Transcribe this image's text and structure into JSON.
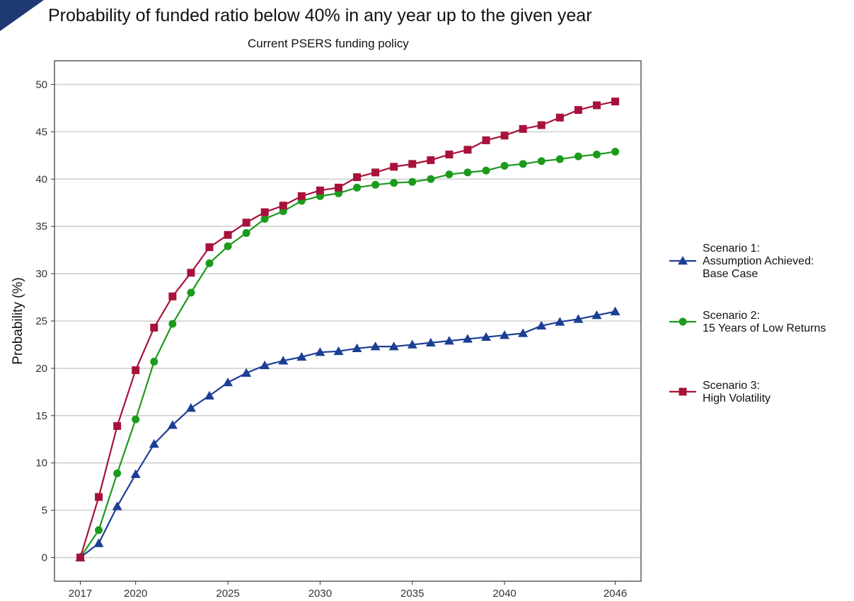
{
  "colors": {
    "accent": "#1f3a73",
    "grid": "#cfcfcf",
    "frame": "#333333"
  },
  "chart_data": {
    "type": "line",
    "title": "Probability of funded ratio below 40% in any year up to the given year",
    "subtitle": "Current PSERS funding policy",
    "xlabel": "",
    "ylabel": "Probability (%)",
    "xlim": [
      2017,
      2046
    ],
    "ylim": [
      0,
      50
    ],
    "x_ticks": [
      2017,
      2020,
      2025,
      2030,
      2035,
      2040,
      2046
    ],
    "y_ticks": [
      0,
      5,
      10,
      15,
      20,
      25,
      30,
      35,
      40,
      45,
      50
    ],
    "grid": true,
    "legend_position": "right",
    "x": [
      2017,
      2018,
      2019,
      2020,
      2021,
      2022,
      2023,
      2024,
      2025,
      2026,
      2027,
      2028,
      2029,
      2030,
      2031,
      2032,
      2033,
      2034,
      2035,
      2036,
      2037,
      2038,
      2039,
      2040,
      2041,
      2042,
      2043,
      2044,
      2045,
      2046
    ],
    "series": [
      {
        "name_lines": [
          "Scenario 1:",
          "Assumption Achieved:",
          "Base Case"
        ],
        "color": "#1c3f94",
        "marker": "triangle",
        "values": [
          0.0,
          1.5,
          5.4,
          8.8,
          12.0,
          14.0,
          15.8,
          17.1,
          18.5,
          19.5,
          20.3,
          20.8,
          21.2,
          21.7,
          21.8,
          22.1,
          22.3,
          22.3,
          22.5,
          22.7,
          22.9,
          23.1,
          23.3,
          23.5,
          23.7,
          24.5,
          24.9,
          25.2,
          25.6,
          26.0
        ]
      },
      {
        "name_lines": [
          "Scenario 2:",
          "15 Years of Low Returns"
        ],
        "color": "#1c9a1c",
        "marker": "circle",
        "values": [
          0.0,
          2.9,
          8.9,
          14.6,
          20.7,
          24.7,
          28.0,
          31.1,
          32.9,
          34.3,
          35.8,
          36.6,
          37.7,
          38.2,
          38.5,
          39.1,
          39.4,
          39.6,
          39.7,
          40.0,
          40.5,
          40.7,
          40.9,
          41.4,
          41.6,
          41.9,
          42.1,
          42.4,
          42.6,
          42.9
        ]
      },
      {
        "name_lines": [
          "Scenario 3:",
          "High Volatility"
        ],
        "color": "#a8123a",
        "marker": "square",
        "values": [
          0.0,
          6.4,
          13.9,
          19.8,
          24.3,
          27.6,
          30.1,
          32.8,
          34.1,
          35.4,
          36.5,
          37.2,
          38.2,
          38.8,
          39.1,
          40.2,
          40.7,
          41.3,
          41.6,
          42.0,
          42.6,
          43.1,
          44.1,
          44.6,
          45.3,
          45.7,
          46.5,
          47.3,
          47.8,
          48.2
        ]
      }
    ]
  }
}
